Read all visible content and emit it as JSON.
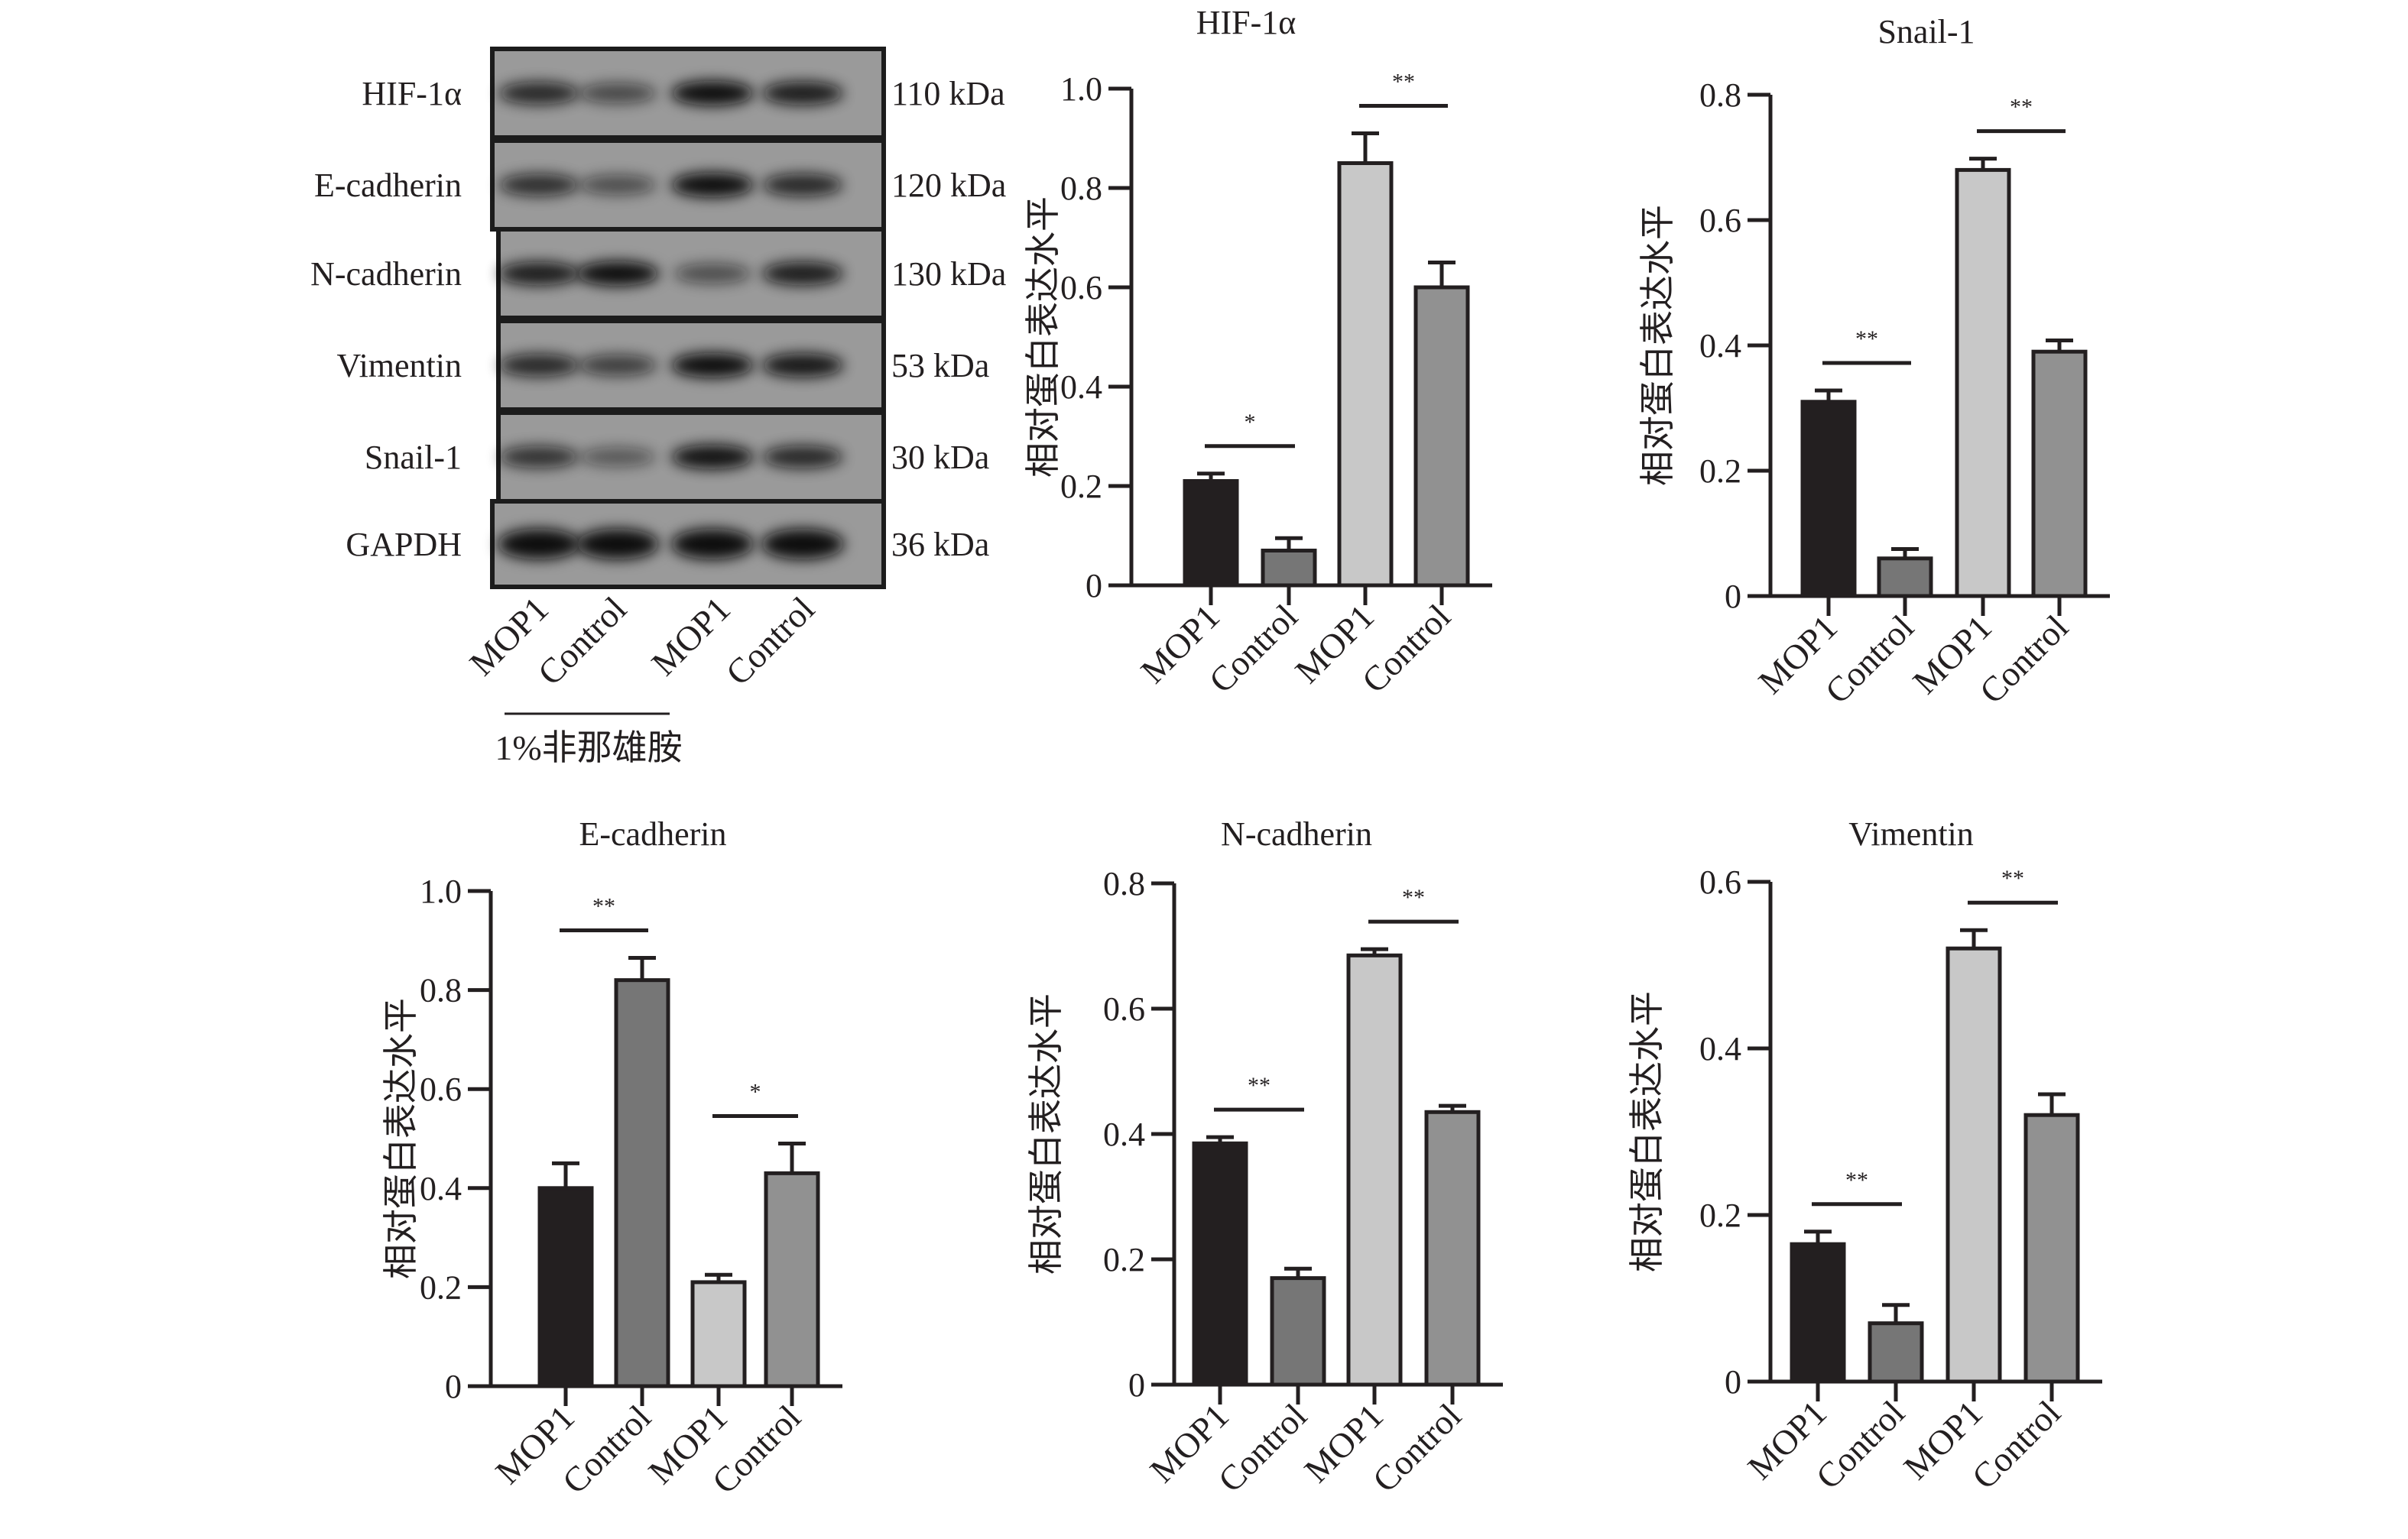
{
  "blot": {
    "proteins": [
      {
        "name": "HIF-1α",
        "size": "110 kDa"
      },
      {
        "name": "E-cadherin",
        "size": "120 kDa"
      },
      {
        "name": "N-cadherin",
        "size": "130 kDa"
      },
      {
        "name": "Vimentin",
        "size": "53 kDa"
      },
      {
        "name": "Snail-1",
        "size": "30 kDa"
      },
      {
        "name": "GAPDH",
        "size": "36 kDa"
      }
    ],
    "lanes": [
      "MOP1",
      "Control",
      "MOP1",
      "Control"
    ],
    "treatment_label": "1%非那雄胺"
  },
  "colors": {
    "bar_fills": [
      "#231f20",
      "#767676",
      "#c8c8c8",
      "#919191"
    ],
    "outline": "#231f20"
  },
  "chart_data": [
    {
      "type": "bar",
      "title": "HIF-1α",
      "ylabel": "相对蛋白表达水平",
      "xlabel": "",
      "categories": [
        "MOP1",
        "Control",
        "MOP1",
        "Control"
      ],
      "values": [
        0.21,
        0.07,
        0.85,
        0.6
      ],
      "errors": [
        0.015,
        0.025,
        0.06,
        0.05
      ],
      "ylim": [
        0,
        1.0
      ],
      "yticks": [
        "0",
        "0.2",
        "0.4",
        "0.6",
        "0.8",
        "1.0"
      ],
      "significance": [
        {
          "pair": [
            0,
            1
          ],
          "label": "*"
        },
        {
          "pair": [
            2,
            3
          ],
          "label": "**"
        }
      ],
      "grid": false
    },
    {
      "type": "bar",
      "title": "Snail-1",
      "ylabel": "相对蛋白表达水平",
      "xlabel": "",
      "categories": [
        "MOP1",
        "Control",
        "MOP1",
        "Control"
      ],
      "values": [
        0.31,
        0.06,
        0.68,
        0.39
      ],
      "errors": [
        0.018,
        0.015,
        0.018,
        0.018
      ],
      "ylim": [
        0,
        0.8
      ],
      "yticks": [
        "0",
        "0.2",
        "0.4",
        "0.6",
        "0.8"
      ],
      "significance": [
        {
          "pair": [
            0,
            1
          ],
          "label": "**"
        },
        {
          "pair": [
            2,
            3
          ],
          "label": "**"
        }
      ],
      "grid": false
    },
    {
      "type": "bar",
      "title": "E-cadherin",
      "ylabel": "相对蛋白表达水平",
      "xlabel": "",
      "categories": [
        "MOP1",
        "Control",
        "MOP1",
        "Control"
      ],
      "values": [
        0.4,
        0.82,
        0.21,
        0.43
      ],
      "errors": [
        0.05,
        0.045,
        0.015,
        0.06
      ],
      "ylim": [
        0,
        1.0
      ],
      "yticks": [
        "0",
        "0.2",
        "0.4",
        "0.6",
        "0.8",
        "1.0"
      ],
      "significance": [
        {
          "pair": [
            0,
            1
          ],
          "label": "**"
        },
        {
          "pair": [
            2,
            3
          ],
          "label": "*"
        }
      ],
      "grid": false
    },
    {
      "type": "bar",
      "title": "N-cadherin",
      "ylabel": "相对蛋白表达水平",
      "xlabel": "",
      "categories": [
        "MOP1",
        "Control",
        "MOP1",
        "Control"
      ],
      "values": [
        0.385,
        0.17,
        0.685,
        0.435
      ],
      "errors": [
        0.01,
        0.015,
        0.01,
        0.01
      ],
      "ylim": [
        0,
        0.8
      ],
      "yticks": [
        "0",
        "0.2",
        "0.4",
        "0.6",
        "0.8"
      ],
      "significance": [
        {
          "pair": [
            0,
            1
          ],
          "label": "**"
        },
        {
          "pair": [
            2,
            3
          ],
          "label": "**"
        }
      ],
      "grid": false
    },
    {
      "type": "bar",
      "title": "Vimentin",
      "ylabel": "相对蛋白表达水平",
      "xlabel": "",
      "categories": [
        "MOP1",
        "Control",
        "MOP1",
        "Control"
      ],
      "values": [
        0.165,
        0.07,
        0.52,
        0.32
      ],
      "errors": [
        0.015,
        0.022,
        0.022,
        0.025
      ],
      "ylim": [
        0,
        0.6
      ],
      "yticks": [
        "0",
        "0.2",
        "0.4",
        "0.6"
      ],
      "significance": [
        {
          "pair": [
            0,
            1
          ],
          "label": "**"
        },
        {
          "pair": [
            2,
            3
          ],
          "label": "**"
        }
      ],
      "grid": false
    }
  ]
}
